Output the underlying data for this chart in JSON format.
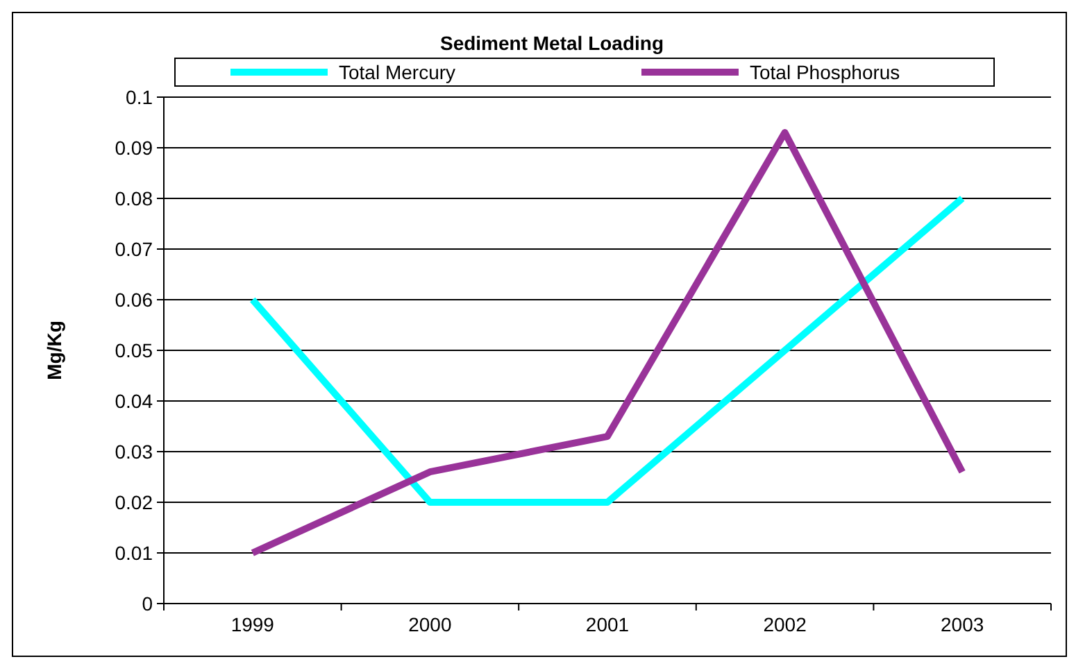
{
  "chart_data": {
    "type": "line",
    "title": "Sediment Metal Loading",
    "ylabel": "Mg/Kg",
    "categories": [
      "1999",
      "2000",
      "2001",
      "2002",
      "2003"
    ],
    "series": [
      {
        "name": "Total Mercury",
        "color": "#00ffff",
        "values": [
          0.06,
          0.02,
          0.02,
          0.05,
          0.08
        ]
      },
      {
        "name": "Total Phosphorus",
        "color": "#993399",
        "values": [
          0.01,
          0.026,
          0.033,
          0.093,
          0.026
        ]
      }
    ],
    "ylim": [
      0,
      0.1
    ],
    "yticks": [
      0,
      0.01,
      0.02,
      0.03,
      0.04,
      0.05,
      0.06,
      0.07,
      0.08,
      0.09,
      0.1
    ],
    "grid": "y",
    "legend": "top",
    "marker": "none",
    "line_style": "solid"
  }
}
